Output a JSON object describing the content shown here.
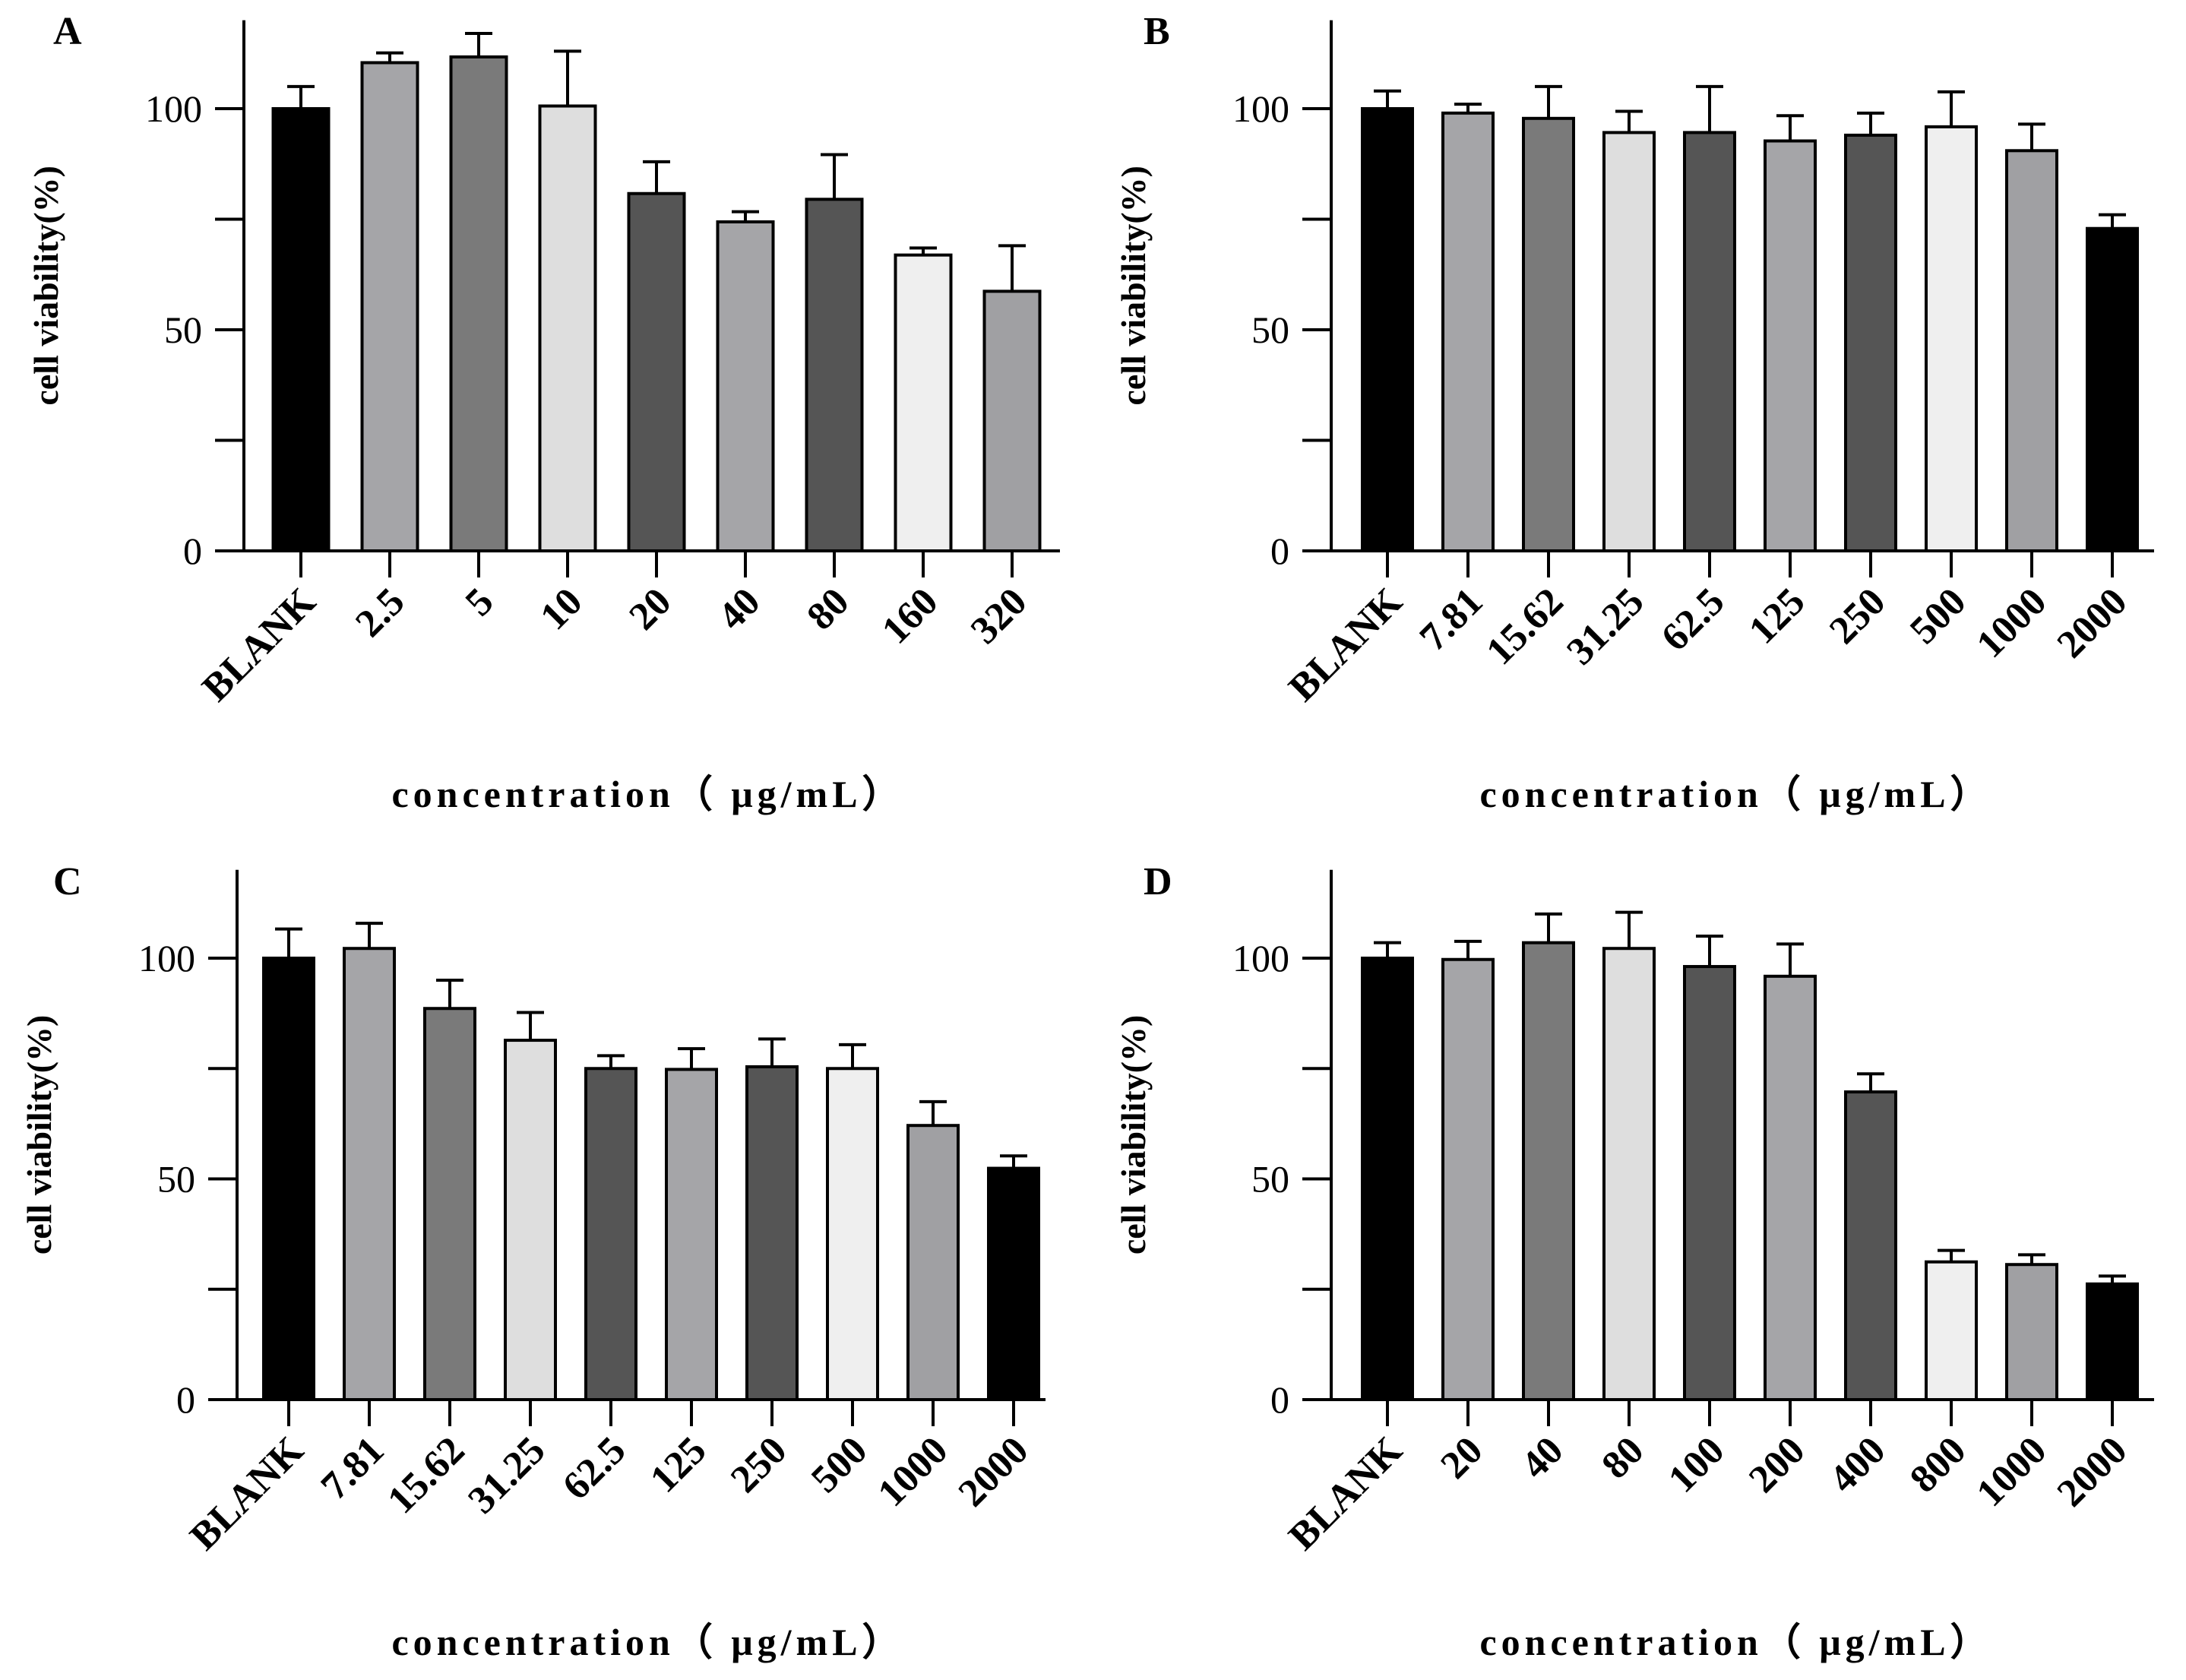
{
  "chart_data": [
    {
      "type": "bar",
      "title": "A",
      "xlabel": "concentration（ μg/mL）",
      "ylabel": "cell viability(%)",
      "ylim": [
        0,
        120
      ],
      "yticks": [
        "0",
        "50",
        "100"
      ],
      "categories": [
        "BLANK",
        "2.5",
        "5",
        "10",
        "20",
        "40",
        "80",
        "160",
        "320"
      ],
      "values": [
        100,
        110.4,
        111.7,
        100.6,
        80.8,
        74.4,
        79.5,
        66.9,
        58.7
      ],
      "error_upper": [
        105,
        112.6,
        117,
        113,
        88,
        76.7,
        89.6,
        68.5,
        69
      ],
      "colors": [
        "#000000",
        "#a5a5a8",
        "#7a7a7a",
        "#dedede",
        "#555555",
        "#a5a5a8",
        "#555555",
        "#efefef",
        "#a0a0a3"
      ]
    },
    {
      "type": "bar",
      "title": "B",
      "xlabel": "concentration（ μg/mL）",
      "ylabel": "cell viability(%)",
      "ylim": [
        0,
        120
      ],
      "yticks": [
        "0",
        "50",
        "100"
      ],
      "categories": [
        "BLANK",
        "7.81",
        "15.62",
        "31.25",
        "62.5",
        "125",
        "250",
        "500",
        "1000",
        "2000"
      ],
      "values": [
        100,
        99,
        97.8,
        94.6,
        94.6,
        92.7,
        94,
        95.9,
        90.5,
        72.9
      ],
      "error_upper": [
        104,
        101,
        105,
        99.4,
        105,
        98.4,
        99,
        103.8,
        96.5,
        76
      ],
      "colors": [
        "#000000",
        "#a5a5a8",
        "#7a7a7a",
        "#dedede",
        "#555555",
        "#a5a5a8",
        "#555555",
        "#efefef",
        "#a0a0a3",
        "#000000"
      ]
    },
    {
      "type": "bar",
      "title": "C",
      "xlabel": "concentration（ μg/mL）",
      "ylabel": "cell viability(%)",
      "ylim": [
        0,
        120
      ],
      "yticks": [
        "0",
        "50",
        "100"
      ],
      "categories": [
        "BLANK",
        "7.81",
        "15.62",
        "31.25",
        "62.5",
        "125",
        "250",
        "500",
        "1000",
        "2000"
      ],
      "values": [
        100,
        102.2,
        88.6,
        81.4,
        75,
        74.8,
        75.4,
        75,
        62.1,
        52.4
      ],
      "error_upper": [
        106.6,
        107.9,
        95,
        87.7,
        77.9,
        79.5,
        81.7,
        80.4,
        67.5,
        55.2
      ],
      "colors": [
        "#000000",
        "#a5a5a8",
        "#7a7a7a",
        "#dedede",
        "#555555",
        "#a5a5a8",
        "#555555",
        "#efefef",
        "#a0a0a3",
        "#000000"
      ]
    },
    {
      "type": "bar",
      "title": "D",
      "xlabel": "concentration（ μg/mL）",
      "ylabel": "cell viability(%)",
      "ylim": [
        0,
        120
      ],
      "yticks": [
        "0",
        "50",
        "100"
      ],
      "categories": [
        "BLANK",
        "20",
        "40",
        "80",
        "100",
        "200",
        "400",
        "800",
        "1000",
        "2000"
      ],
      "values": [
        100,
        99.7,
        103.5,
        102.2,
        98.1,
        95.9,
        69.7,
        31.2,
        30.6,
        26.2
      ],
      "error_upper": [
        103.5,
        103.8,
        110,
        110.4,
        105,
        103.2,
        73.8,
        33.8,
        32.8,
        28
      ],
      "colors": [
        "#000000",
        "#a5a5a8",
        "#7a7a7a",
        "#dedede",
        "#555555",
        "#a5a5a8",
        "#555555",
        "#efefef",
        "#a0a0a3",
        "#000000"
      ]
    }
  ]
}
